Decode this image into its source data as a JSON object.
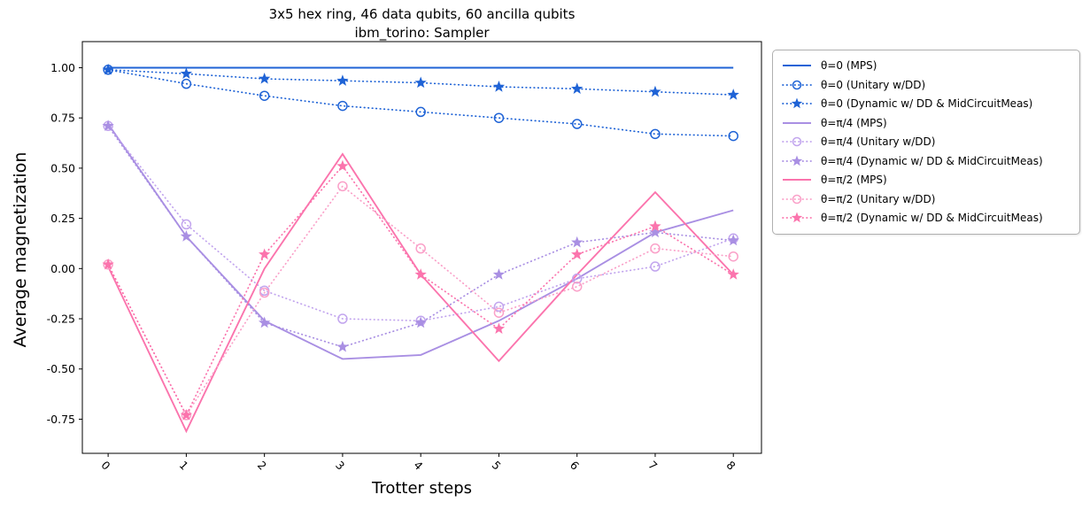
{
  "chart_data": {
    "type": "line",
    "title_line1": "3x5 hex ring, 46 data qubits, 60 ancilla qubits",
    "title_line2": "ibm_torino: Sampler",
    "xlabel": "Trotter steps",
    "ylabel": "Average magnetization",
    "x": [
      0,
      1,
      2,
      3,
      4,
      5,
      6,
      7,
      8
    ],
    "xticks": [
      "0",
      "1",
      "2",
      "3",
      "4",
      "5",
      "6",
      "7",
      "8"
    ],
    "xtick_rotation": 45,
    "yticks": [
      "1.00",
      "0.75",
      "0.50",
      "0.25",
      "0.00",
      "-0.25",
      "-0.50",
      "-0.75"
    ],
    "ytick_values": [
      1.0,
      0.75,
      0.5,
      0.25,
      0.0,
      -0.25,
      -0.5,
      -0.75
    ],
    "xlim": [
      -0.33,
      8.36
    ],
    "ylim": [
      -0.92,
      1.13
    ],
    "grid": false,
    "legend_position": "outside right",
    "colors": {
      "theta0": "#1f63d6",
      "theta0_light": "#1f63d6",
      "pi4": "#a98fe3",
      "pi4_light": "#c2a5ee",
      "pi2": "#fb74ad",
      "pi2_light": "#faa0c8"
    },
    "series": [
      {
        "name": "θ=0 (MPS)",
        "color": "#1f63d6",
        "linestyle": "solid",
        "marker": "none",
        "values": [
          1.0,
          1.0,
          1.0,
          1.0,
          1.0,
          1.0,
          1.0,
          1.0,
          1.0
        ]
      },
      {
        "name": "θ=0 (Unitary w/DD)",
        "color": "#1f63d6",
        "linestyle": "dotted",
        "marker": "circle",
        "values": [
          0.99,
          0.92,
          0.86,
          0.81,
          0.78,
          0.75,
          0.72,
          0.67,
          0.66
        ]
      },
      {
        "name": "θ=0 (Dynamic w/ DD & MidCircuitMeas)",
        "color": "#1f63d6",
        "linestyle": "dotted",
        "marker": "star",
        "values": [
          0.99,
          0.97,
          0.945,
          0.935,
          0.925,
          0.905,
          0.895,
          0.88,
          0.865
        ]
      },
      {
        "name": "θ=π/4 (MPS)",
        "color": "#a98fe3",
        "linestyle": "solid",
        "marker": "none",
        "values": [
          0.72,
          0.16,
          -0.26,
          -0.45,
          -0.43,
          -0.26,
          -0.05,
          0.18,
          0.29
        ]
      },
      {
        "name": "θ=π/4 (Unitary w/DD)",
        "color": "#c2a5ee",
        "linestyle": "dotted",
        "marker": "circle",
        "values": [
          0.71,
          0.22,
          -0.11,
          -0.25,
          -0.26,
          -0.19,
          -0.05,
          0.01,
          0.15
        ]
      },
      {
        "name": "θ=π/4 (Dynamic w/ DD & MidCircuitMeas)",
        "color": "#a98fe3",
        "linestyle": "dotted",
        "marker": "star",
        "values": [
          0.71,
          0.16,
          -0.27,
          -0.39,
          -0.27,
          -0.03,
          0.13,
          0.18,
          0.14
        ]
      },
      {
        "name": "θ=π/2 (MPS)",
        "color": "#fb74ad",
        "linestyle": "solid",
        "marker": "none",
        "values": [
          0.01,
          -0.81,
          0.0,
          0.57,
          -0.03,
          -0.46,
          -0.03,
          0.38,
          -0.03
        ]
      },
      {
        "name": "θ=π/2 (Unitary w/DD)",
        "color": "#faa0c8",
        "linestyle": "dotted",
        "marker": "circle",
        "values": [
          0.02,
          -0.73,
          -0.12,
          0.41,
          0.1,
          -0.22,
          -0.09,
          0.1,
          0.06
        ]
      },
      {
        "name": "θ=π/2 (Dynamic w/ DD & MidCircuitMeas)",
        "color": "#fb74ad",
        "linestyle": "dotted",
        "marker": "star",
        "values": [
          0.02,
          -0.73,
          0.07,
          0.51,
          -0.03,
          -0.3,
          0.07,
          0.21,
          -0.03
        ]
      }
    ]
  }
}
